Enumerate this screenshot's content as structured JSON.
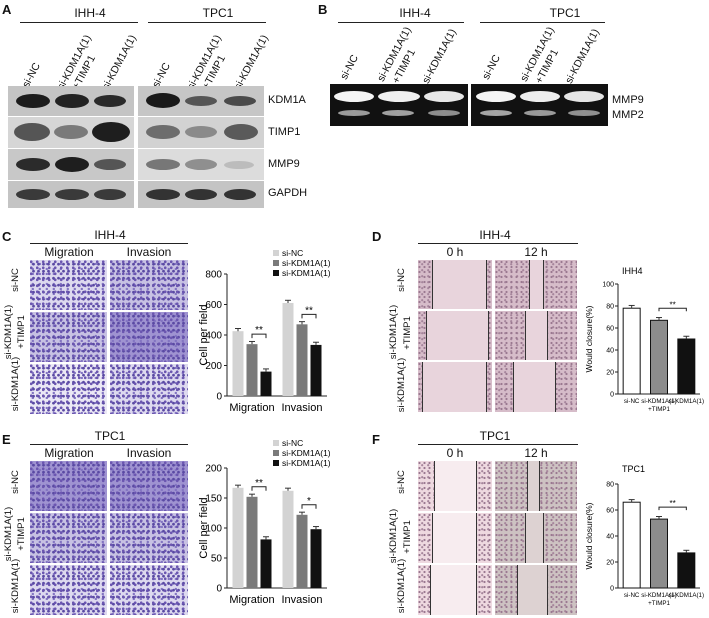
{
  "panels": {
    "A": {
      "label": "A",
      "groups": [
        "IHH-4",
        "TPC1"
      ],
      "lanes": [
        "si-NC",
        "si-KDM1A(1)",
        "+TIMP1",
        "si-KDM1A(1)"
      ],
      "proteins": [
        "KDM1A",
        "TIMP1",
        "MMP9",
        "GAPDH"
      ]
    },
    "B": {
      "label": "B",
      "groups": [
        "IHH-4",
        "TPC1"
      ],
      "lanes": [
        "si-NC",
        "si-KDM1A(1)",
        "+TIMP1",
        "si-KDM1A(1)"
      ],
      "bands": [
        "MMP9",
        "MMP2"
      ]
    },
    "C": {
      "label": "C",
      "title": "IHH-4",
      "cols": [
        "Migration",
        "Invasion"
      ],
      "rows": [
        "si-NC",
        "si-KDM1A(1)",
        "+TIMP1",
        "si-KDM1A(1)"
      ]
    },
    "D": {
      "label": "D",
      "title": "IHH-4",
      "cols": [
        "0 h",
        "12 h"
      ],
      "rows": [
        "si-NC",
        "si-KDM1A(1)",
        "+TIMP1",
        "si-KDM1A(1)"
      ]
    },
    "E": {
      "label": "E",
      "title": "TPC1",
      "cols": [
        "Migration",
        "Invasion"
      ],
      "rows": [
        "si-NC",
        "si-KDM1A(1)",
        "+TIMP1",
        "si-KDM1A(1)"
      ]
    },
    "F": {
      "label": "F",
      "title": "TPC1",
      "cols": [
        "0 h",
        "12 h"
      ],
      "rows": [
        "si-NC",
        "si-KDM1A(1)",
        "+TIMP1",
        "si-KDM1A(1)"
      ]
    }
  },
  "colors": {
    "siNC": "#d3d3d3",
    "rescue": "#7a7a7a",
    "siKDM": "#111111",
    "open": "#ffffff",
    "mid": "#8c8c8c"
  },
  "chart_data": [
    {
      "id": "C-bar",
      "type": "bar",
      "ylabel": "Cell per field",
      "categories": [
        "Migration",
        "Invasion"
      ],
      "ylim": [
        0,
        800
      ],
      "yticks": [
        "0",
        "200",
        "400",
        "600",
        "800"
      ],
      "series": [
        {
          "name": "si-NC",
          "values": [
            425,
            610
          ]
        },
        {
          "name": "si-KDM1A(1)+TIMP1",
          "values": [
            340,
            470
          ]
        },
        {
          "name": "si-KDM1A(1)",
          "values": [
            160,
            335
          ]
        }
      ],
      "significance": [
        "**",
        "**"
      ]
    },
    {
      "id": "D-bar",
      "type": "bar",
      "title": "IHH4",
      "ylabel": "Would closure(%)",
      "categories": [
        "si-NC",
        "si-KDM1A(1)",
        "si-KDM1A(1)"
      ],
      "category_sublabels": [
        "",
        "+TIMP1",
        ""
      ],
      "ylim": [
        0,
        100
      ],
      "yticks": [
        "0",
        "20",
        "40",
        "60",
        "80",
        "100"
      ],
      "values": [
        78,
        67,
        50
      ],
      "significance": [
        "**"
      ]
    },
    {
      "id": "E-bar",
      "type": "bar",
      "ylabel": "Cell per field",
      "categories": [
        "Migration",
        "Invasion"
      ],
      "ylim": [
        0,
        200
      ],
      "yticks": [
        "0",
        "50",
        "100",
        "150",
        "200"
      ],
      "series": [
        {
          "name": "si-NC",
          "values": [
            167,
            162
          ]
        },
        {
          "name": "si-KDM1A(1)+TIMP1",
          "values": [
            152,
            122
          ]
        },
        {
          "name": "si-KDM1A(1)",
          "values": [
            81,
            98
          ]
        }
      ],
      "significance": [
        "**",
        "*"
      ]
    },
    {
      "id": "F-bar",
      "type": "bar",
      "title": "TPC1",
      "ylabel": "Would closure(%)",
      "categories": [
        "si-NC",
        "si-KDM1A(1)",
        "si-KDM1A(1)"
      ],
      "category_sublabels": [
        "",
        "+TIMP1",
        ""
      ],
      "ylim": [
        0,
        80
      ],
      "yticks": [
        "0",
        "20",
        "40",
        "60",
        "80"
      ],
      "values": [
        66,
        53,
        27
      ],
      "significance": [
        "**"
      ]
    }
  ]
}
